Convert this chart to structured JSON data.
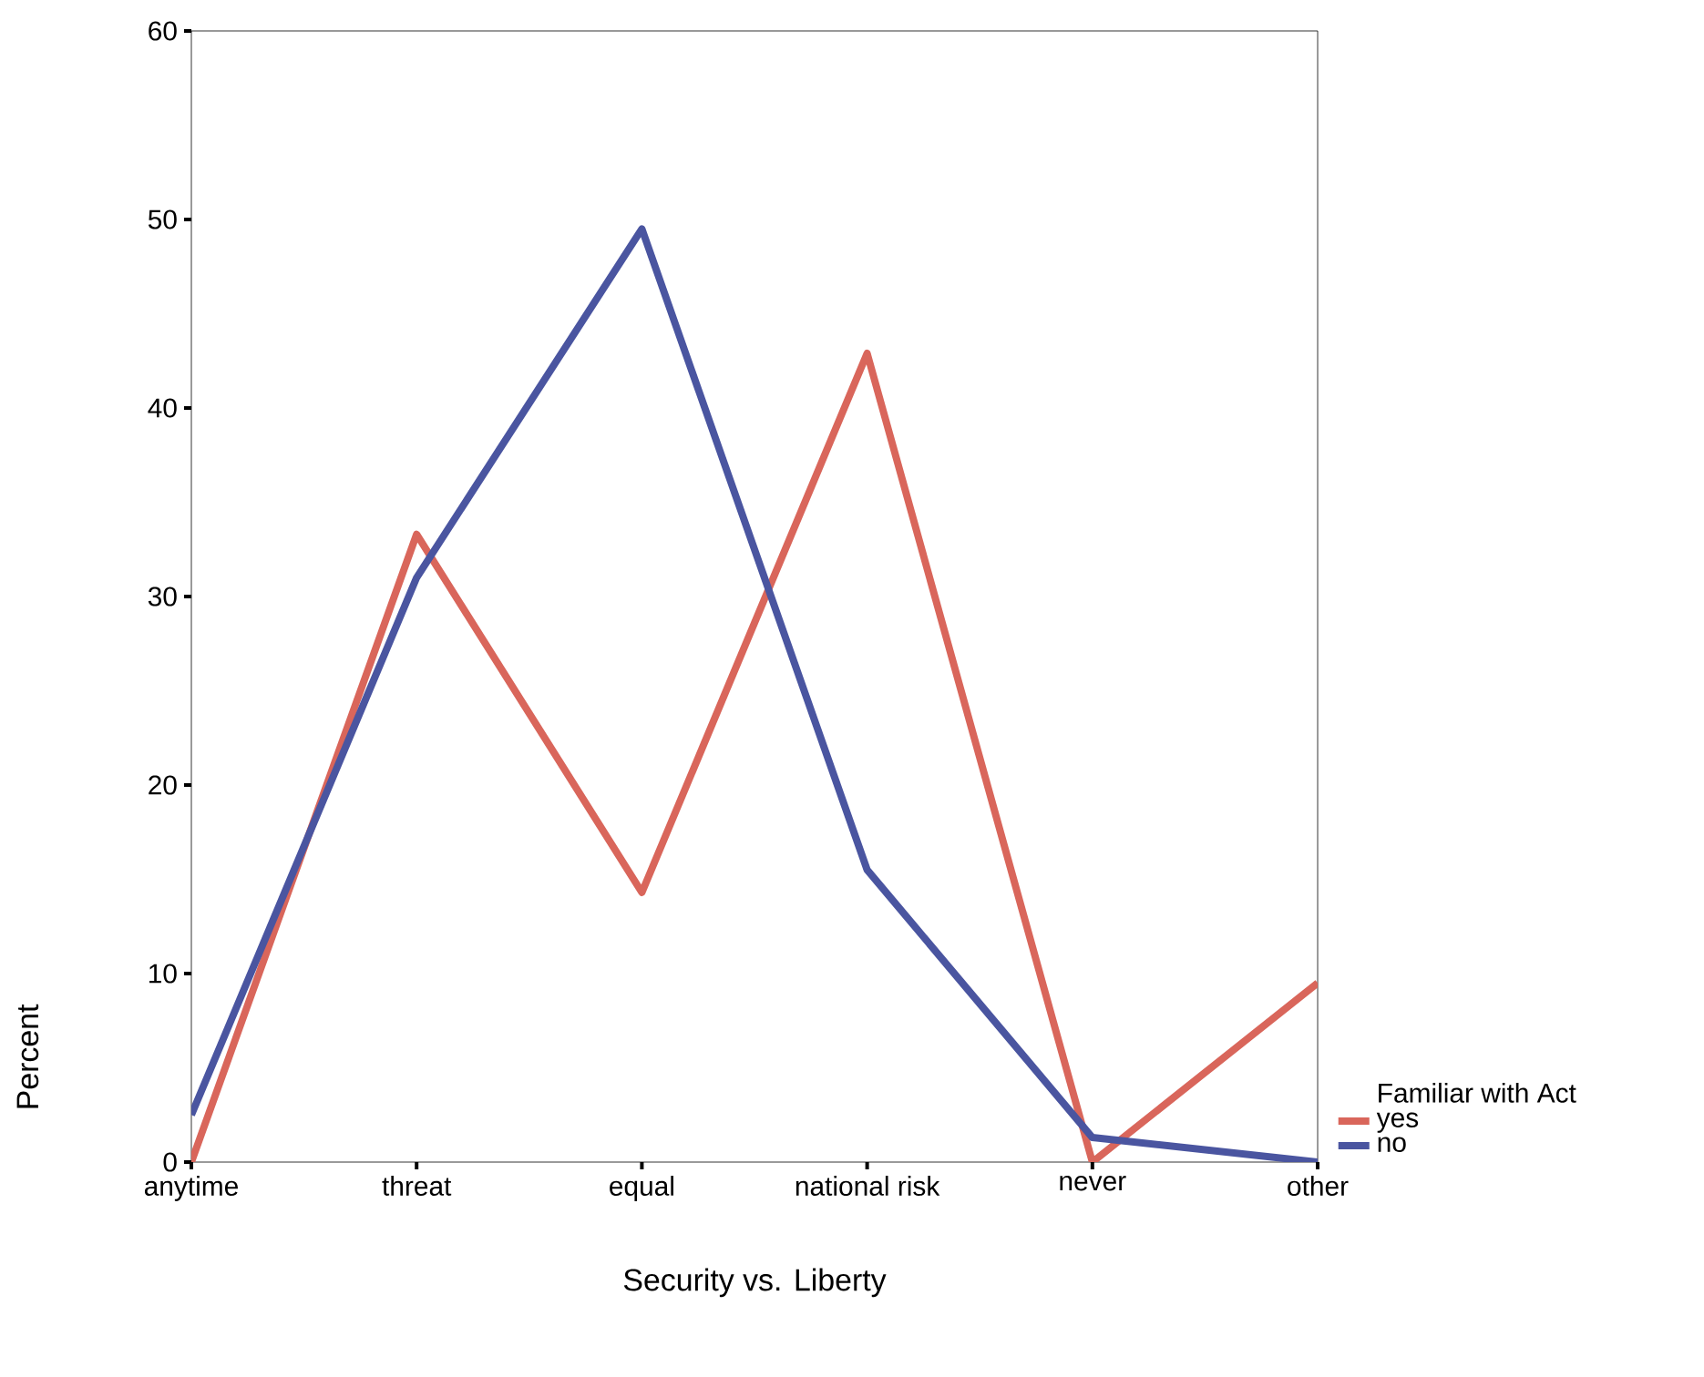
{
  "chart_data": {
    "type": "line",
    "xlabel": "Security vs. Liberty",
    "ylabel": "Percent",
    "legend_title": "Familiar with Act",
    "categories": [
      "anytime",
      "threat",
      "equal",
      "national risk",
      "never",
      "other"
    ],
    "series": [
      {
        "name": "yes",
        "color": "#d9665b",
        "values": [
          0,
          33.3,
          14.3,
          42.9,
          0,
          9.5
        ]
      },
      {
        "name": "no",
        "color": "#4a55a0",
        "values": [
          2.5,
          31,
          49.5,
          15.5,
          1.3,
          0
        ]
      }
    ],
    "ylim": [
      0,
      60
    ],
    "yticks": [
      0,
      10,
      20,
      30,
      40,
      50,
      60
    ],
    "legend": "right",
    "grid": false,
    "marker": "none",
    "line_style": "solid"
  }
}
